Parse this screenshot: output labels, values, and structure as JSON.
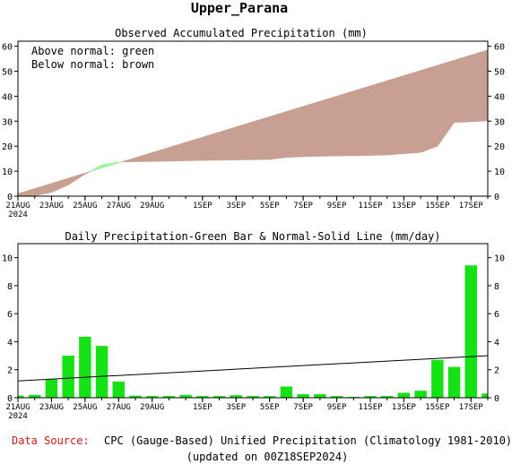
{
  "page": {
    "title": "Upper_Parana",
    "footer": {
      "source_label": "Data Source:",
      "source_text": "CPC (Gauge-Based) Unified Precipitation (Climatology 1981-2010)",
      "updated": "(updated on 00Z18SEP2024)"
    }
  },
  "colors": {
    "above": "#98f598",
    "below": "#c8a093",
    "bar": "#14e214",
    "source_label": "#d01818"
  },
  "chart_data": [
    {
      "type": "area",
      "title": "Observed Accumulated Precipitation (mm)",
      "legend": [
        "Above normal: green",
        "Below normal: brown"
      ],
      "legend_position": "top-left",
      "ylim": [
        0,
        62
      ],
      "yticks": [
        0,
        10,
        20,
        30,
        40,
        50,
        60
      ],
      "xlim": [
        0,
        28
      ],
      "x_tick_positions": [
        0,
        2,
        4,
        6,
        8,
        11,
        13,
        15,
        17,
        19,
        21,
        23,
        25,
        27
      ],
      "x_tick_labels": [
        "21AUG",
        "23AUG",
        "25AUG",
        "27AUG",
        "29AUG",
        "1SEP",
        "3SEP",
        "5SEP",
        "7SEP",
        "9SEP",
        "11SEP",
        "13SEP",
        "15SEP",
        "17SEP"
      ],
      "x_sublabel": "2024",
      "series": [
        {
          "name": "Observed",
          "x": [
            0,
            1,
            2,
            3,
            4,
            5,
            6,
            7,
            8,
            9,
            10,
            11,
            12,
            13,
            14,
            15,
            16,
            17,
            18,
            19,
            20,
            21,
            22,
            23,
            24,
            25,
            26,
            27,
            28
          ],
          "values": [
            0,
            0.2,
            1.5,
            4.5,
            8.8,
            12.5,
            13.7,
            13.8,
            13.9,
            14.0,
            14.2,
            14.3,
            14.4,
            14.5,
            14.6,
            14.7,
            15.5,
            15.8,
            16.0,
            16.1,
            16.2,
            16.3,
            16.5,
            17.0,
            17.5,
            20.0,
            29.5,
            29.8,
            30.1
          ]
        },
        {
          "name": "Normal",
          "x": [
            0,
            28
          ],
          "values": [
            1.0,
            58.5
          ]
        }
      ]
    },
    {
      "type": "bar",
      "title": "Daily Precipitation-Green Bar & Normal-Solid Line (mm/day)",
      "ylim": [
        0,
        11
      ],
      "yticks": [
        0,
        2,
        4,
        6,
        8,
        10
      ],
      "xlim": [
        0,
        28
      ],
      "x_tick_positions": [
        0,
        2,
        4,
        6,
        8,
        11,
        13,
        15,
        17,
        19,
        21,
        23,
        25,
        27
      ],
      "x_tick_labels": [
        "21AUG",
        "23AUG",
        "25AUG",
        "27AUG",
        "29AUG",
        "1SEP",
        "3SEP",
        "5SEP",
        "7SEP",
        "9SEP",
        "11SEP",
        "13SEP",
        "15SEP",
        "17SEP"
      ],
      "x_sublabel": "2024",
      "series": [
        {
          "name": "Daily Precipitation",
          "x": [
            0,
            1,
            2,
            3,
            4,
            5,
            6,
            7,
            8,
            9,
            10,
            11,
            12,
            13,
            14,
            15,
            16,
            17,
            18,
            19,
            20,
            21,
            22,
            23,
            24,
            25,
            26,
            27,
            28
          ],
          "values": [
            0.15,
            0.2,
            1.3,
            3.0,
            4.35,
            3.7,
            1.15,
            0.15,
            0.12,
            0.12,
            0.2,
            0.12,
            0.12,
            0.18,
            0.12,
            0.12,
            0.8,
            0.25,
            0.25,
            0.12,
            0.06,
            0.12,
            0.12,
            0.35,
            0.5,
            2.7,
            2.2,
            9.45,
            0.3
          ]
        },
        {
          "name": "Normal",
          "x": [
            0,
            28
          ],
          "values": [
            1.2,
            3.0
          ]
        }
      ]
    }
  ]
}
